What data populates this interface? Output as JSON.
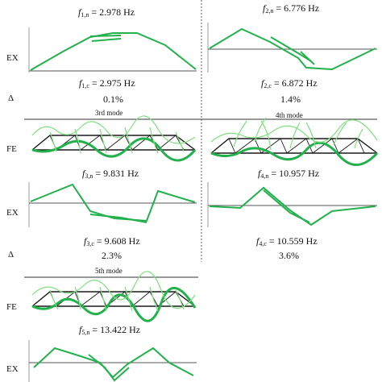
{
  "colors": {
    "mode_green": "#22b14c",
    "mode_light_green": "#7fe07f",
    "truss_black": "#1a1a1a",
    "axis_gray": "#555555"
  },
  "row_labels": {
    "ex": "EX",
    "fe": "FE",
    "delta": "Δ"
  },
  "modes": {
    "mode1": {
      "f_n_sub": "1,n",
      "f_n_value": "= 2.978 Hz",
      "f_c_sub": "1,c",
      "f_c_value": "= 2.975 Hz",
      "delta": "0.1%"
    },
    "mode2": {
      "f_n_sub": "2,n",
      "f_n_value": "= 6.776 Hz",
      "f_c_sub": "2,c",
      "f_c_value": "= 6.872 Hz",
      "delta": "1.4%"
    },
    "mode3": {
      "title": "3rd mode",
      "f_n_sub": "3,n",
      "f_n_value": "= 9.831 Hz",
      "f_c_sub": "3,c",
      "f_c_value": "= 9.608 Hz",
      "delta": "2.3%"
    },
    "mode4": {
      "title": "4th mode",
      "f_n_sub": "4,n",
      "f_n_value": "= 10.957 Hz",
      "f_c_sub": "4,c",
      "f_c_value": "= 10.559 Hz",
      "delta": "3.6%"
    },
    "mode5": {
      "title": "5th mode",
      "f_n_sub": "5,n",
      "f_n_value": "= 13.422 Hz"
    }
  },
  "symbol": "f"
}
